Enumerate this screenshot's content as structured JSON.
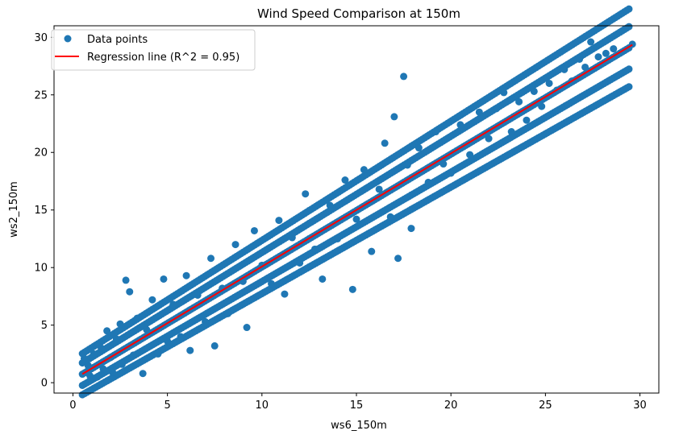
{
  "chart_data": {
    "type": "scatter",
    "title": "Wind Speed Comparison at 150m",
    "xlabel": "ws6_150m",
    "ylabel": "ws2_150m",
    "xlim": [
      -1.0,
      31.0
    ],
    "ylim": [
      -0.9,
      31.0
    ],
    "xticks": [
      0,
      5,
      10,
      15,
      20,
      25,
      30
    ],
    "yticks": [
      0,
      5,
      10,
      15,
      20,
      25,
      30
    ],
    "grid": false,
    "legend_position": "upper-left",
    "series": [
      {
        "name": "Data points",
        "kind": "scatter",
        "color": "#1f77b4",
        "points": [
          [
            0.6,
            2.1
          ],
          [
            0.8,
            1.5
          ],
          [
            0.9,
            0.6
          ],
          [
            1.1,
            2.5
          ],
          [
            1.3,
            0.5
          ],
          [
            1.5,
            3.0
          ],
          [
            1.6,
            1.2
          ],
          [
            1.8,
            4.5
          ],
          [
            2.0,
            2.2
          ],
          [
            2.1,
            0.9
          ],
          [
            2.3,
            3.8
          ],
          [
            2.5,
            5.1
          ],
          [
            2.6,
            1.6
          ],
          [
            2.8,
            8.9
          ],
          [
            3.0,
            7.9
          ],
          [
            3.2,
            2.4
          ],
          [
            3.4,
            5.6
          ],
          [
            3.7,
            0.8
          ],
          [
            3.9,
            4.6
          ],
          [
            4.2,
            7.2
          ],
          [
            4.5,
            2.5
          ],
          [
            4.8,
            9.0
          ],
          [
            5.0,
            3.6
          ],
          [
            5.3,
            6.8
          ],
          [
            5.7,
            4.0
          ],
          [
            6.0,
            9.3
          ],
          [
            6.2,
            2.8
          ],
          [
            6.6,
            7.6
          ],
          [
            7.0,
            5.3
          ],
          [
            7.3,
            10.8
          ],
          [
            7.5,
            3.2
          ],
          [
            7.9,
            8.2
          ],
          [
            8.2,
            6.0
          ],
          [
            8.6,
            12.0
          ],
          [
            9.0,
            8.8
          ],
          [
            9.2,
            4.8
          ],
          [
            9.6,
            13.2
          ],
          [
            10.0,
            10.2
          ],
          [
            10.5,
            8.6
          ],
          [
            10.9,
            14.1
          ],
          [
            11.2,
            7.7
          ],
          [
            11.6,
            12.6
          ],
          [
            12.0,
            10.4
          ],
          [
            12.3,
            16.4
          ],
          [
            12.8,
            11.6
          ],
          [
            13.2,
            9.0
          ],
          [
            13.6,
            15.4
          ],
          [
            14.0,
            12.5
          ],
          [
            14.4,
            17.6
          ],
          [
            14.8,
            8.1
          ],
          [
            15.0,
            14.2
          ],
          [
            15.4,
            18.5
          ],
          [
            15.8,
            11.4
          ],
          [
            16.2,
            16.8
          ],
          [
            16.5,
            20.8
          ],
          [
            16.8,
            14.4
          ],
          [
            17.0,
            23.1
          ],
          [
            17.2,
            10.8
          ],
          [
            17.5,
            26.6
          ],
          [
            17.7,
            18.9
          ],
          [
            17.9,
            13.4
          ],
          [
            18.3,
            20.4
          ],
          [
            18.8,
            17.4
          ],
          [
            19.2,
            21.8
          ],
          [
            19.6,
            19.0
          ],
          [
            20.0,
            18.2
          ],
          [
            20.5,
            22.4
          ],
          [
            21.0,
            19.8
          ],
          [
            21.5,
            23.5
          ],
          [
            22.0,
            21.2
          ],
          [
            22.4,
            23.8
          ],
          [
            22.8,
            25.2
          ],
          [
            23.2,
            21.8
          ],
          [
            23.6,
            24.4
          ],
          [
            24.0,
            22.8
          ],
          [
            24.4,
            25.3
          ],
          [
            24.8,
            24.0
          ],
          [
            25.2,
            26.0
          ],
          [
            25.6,
            25.4
          ],
          [
            26.0,
            27.2
          ],
          [
            26.4,
            26.2
          ],
          [
            26.8,
            28.1
          ],
          [
            27.1,
            27.4
          ],
          [
            27.4,
            29.6
          ],
          [
            27.8,
            28.3
          ],
          [
            28.2,
            28.6
          ],
          [
            28.6,
            29.0
          ],
          [
            29.6,
            29.4
          ]
        ]
      },
      {
        "name": "Regression line (R^2 = 0.95)",
        "kind": "line",
        "color": "#ff0000",
        "x": [
          0.5,
          29.6
        ],
        "y": [
          0.75,
          29.35
        ]
      }
    ]
  }
}
